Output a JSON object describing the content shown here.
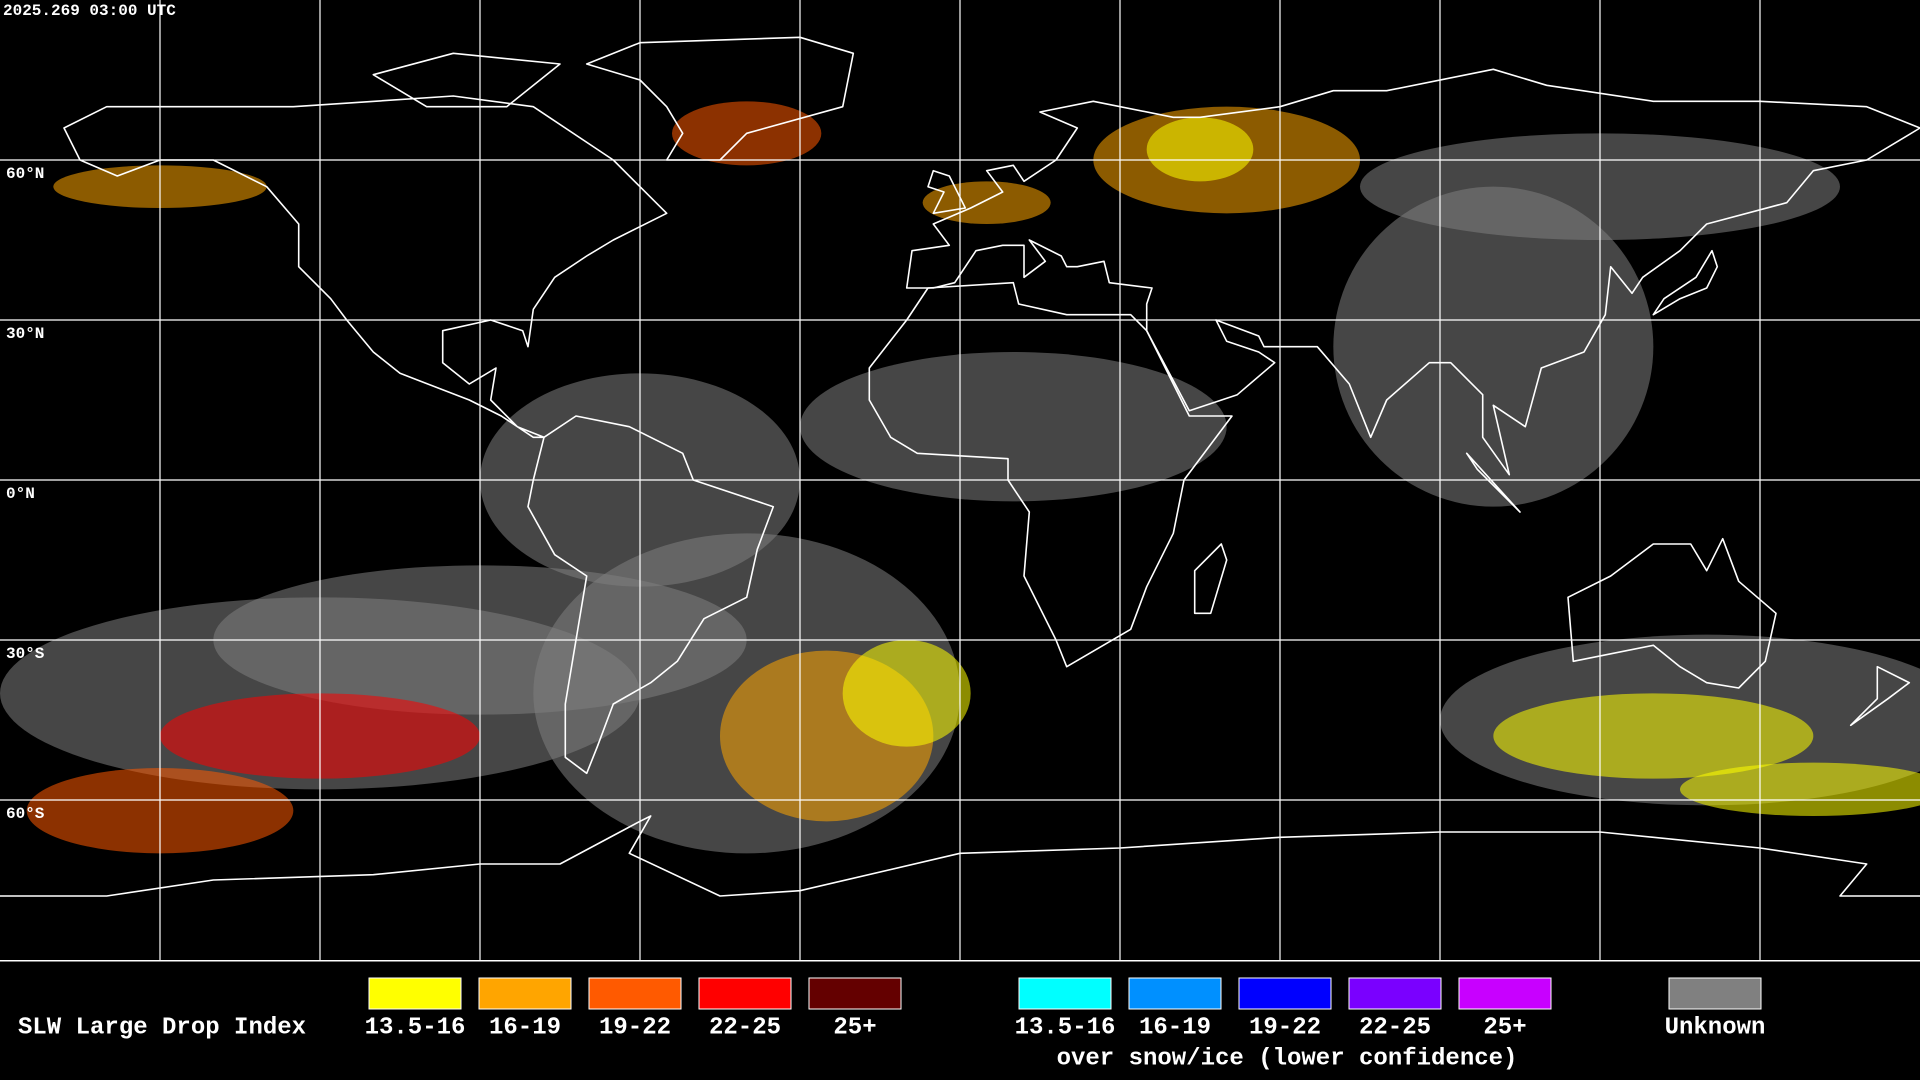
{
  "header": {
    "timestamp": "2025.269 03:00 UTC"
  },
  "map": {
    "lat_labels": [
      "60°N",
      "30°N",
      "0°N",
      "30°S",
      "60°S"
    ]
  },
  "legend": {
    "title": "SLW Large Drop Index",
    "items": [
      {
        "label": "13.5-16",
        "color": "#ffff00"
      },
      {
        "label": "16-19",
        "color": "#ffa500"
      },
      {
        "label": "19-22",
        "color": "#ff5a00"
      },
      {
        "label": "22-25",
        "color": "#ff0000"
      },
      {
        "label": "25+",
        "color": "#640000"
      }
    ],
    "snow_items": [
      {
        "label": "13.5-16",
        "color": "#00ffff"
      },
      {
        "label": "16-19",
        "color": "#0090ff"
      },
      {
        "label": "19-22",
        "color": "#0000ff"
      },
      {
        "label": "22-25",
        "color": "#7a00ff"
      },
      {
        "label": "25+",
        "color": "#c800ff"
      }
    ],
    "snow_note": "over snow/ice (lower confidence)",
    "unknown": {
      "label": "Unknown",
      "color": "#808080"
    }
  }
}
